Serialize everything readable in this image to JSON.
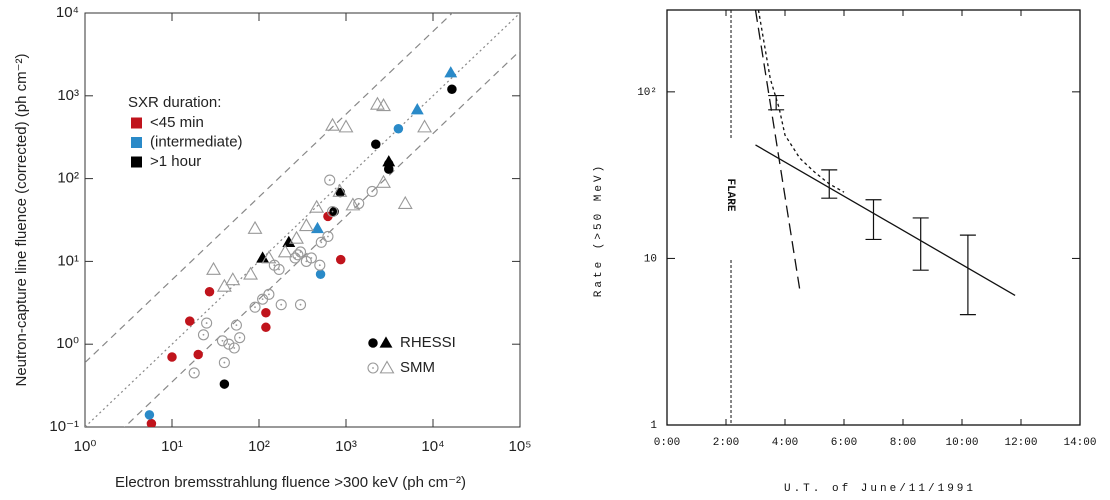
{
  "chart_data": [
    {
      "type": "scatter",
      "xlabel": "Electron bremsstrahlung fluence >300 keV (ph cm⁻²)",
      "ylabel": "Neutron-capture line fluence (corrected)  (ph cm⁻²)",
      "log_x": true,
      "log_y": true,
      "xlim": [
        1,
        100000
      ],
      "ylim": [
        0.1,
        10000
      ],
      "xticks": [
        {
          "value": 1,
          "label": "10⁰"
        },
        {
          "value": 10,
          "label": "10¹"
        },
        {
          "value": 100,
          "label": "10²"
        },
        {
          "value": 1000,
          "label": "10³"
        },
        {
          "value": 10000,
          "label": "10⁴"
        },
        {
          "value": 100000,
          "label": "10⁵"
        }
      ],
      "yticks": [
        {
          "value": 0.1,
          "label": "10⁻¹"
        },
        {
          "value": 1,
          "label": "10⁰"
        },
        {
          "value": 10,
          "label": "10¹"
        },
        {
          "value": 100,
          "label": "10²"
        },
        {
          "value": 1000,
          "label": "10³"
        },
        {
          "value": 10000,
          "label": "10⁴"
        }
      ],
      "legend_title": "SXR duration:",
      "rhessi_label": "RHESSI",
      "series": [
        {
          "name": "<45 min",
          "color": "#c0141c",
          "marker": "circle",
          "x": [
            5.8,
            10,
            16,
            20,
            27,
            120,
            120,
            620,
            870
          ],
          "y": [
            0.11,
            0.7,
            1.9,
            0.75,
            4.3,
            2.4,
            1.6,
            35,
            10.5
          ]
        },
        {
          "name": "(intermediate)",
          "color": "#2a8ac8",
          "marker": "circle",
          "x": [
            5.5,
            510,
            4000
          ],
          "y": [
            0.14,
            7,
            400
          ]
        },
        {
          "name": ">1 hour",
          "color": "#000000",
          "marker": "circle",
          "x": [
            40,
            860,
            730,
            2200,
            3100,
            3100,
            16500
          ],
          "y": [
            0.33,
            68,
            40,
            260,
            130,
            150,
            1200
          ]
        },
        {
          "color": "#2a8ac8",
          "marker": "triangle",
          "x": [
            470,
            6600,
            16000
          ],
          "y": [
            25,
            680,
            1900
          ]
        },
        {
          "color": "#000000",
          "marker": "triangle",
          "x": [
            110,
            220,
            3100
          ],
          "y": [
            11,
            17,
            160
          ]
        },
        {
          "name": "SMM",
          "color": "#999999",
          "marker": "open-circle",
          "x": [
            18,
            23,
            25,
            38,
            40,
            45,
            52,
            55,
            60,
            90,
            110,
            130,
            150,
            170,
            260,
            280,
            300,
            350,
            400,
            500,
            620,
            650,
            700,
            520,
            1400,
            2000,
            180,
            300
          ],
          "y": [
            0.45,
            1.3,
            1.8,
            1.1,
            0.6,
            1.0,
            0.9,
            1.7,
            1.2,
            2.8,
            3.5,
            4,
            9,
            8,
            11,
            12,
            13,
            10,
            11,
            9,
            20,
            96,
            40,
            17,
            50,
            70,
            3,
            3
          ]
        },
        {
          "color": "#999999",
          "marker": "open-triangle",
          "x": [
            30,
            40,
            50,
            80,
            90,
            130,
            200,
            270,
            350,
            460,
            850,
            1200,
            700,
            1000,
            2300,
            2700,
            2700,
            4800,
            8000
          ],
          "y": [
            8,
            5,
            6,
            7,
            25,
            11,
            13,
            19,
            27,
            45,
            70,
            48,
            440,
            420,
            790,
            760,
            90,
            50,
            420
          ]
        }
      ],
      "ratio_lines": [
        {
          "ratio": 0.6,
          "style": "dashed"
        },
        {
          "ratio": 0.1,
          "style": "dotted"
        },
        {
          "ratio": 0.035,
          "style": "dashed"
        }
      ]
    },
    {
      "type": "line",
      "xlabel": "U.T. of June/11/1991",
      "ylabel": "Rate (>50 MeV)",
      "log_y": true,
      "xlim": [
        0,
        14
      ],
      "ylim": [
        1,
        310
      ],
      "xticks": [
        {
          "value": 0,
          "label": "0:00"
        },
        {
          "value": 2,
          "label": "2:00"
        },
        {
          "value": 4,
          "label": "4:00"
        },
        {
          "value": 6,
          "label": "6:00"
        },
        {
          "value": 8,
          "label": "8:00"
        },
        {
          "value": 10,
          "label": "10:00"
        },
        {
          "value": 12,
          "label": "12:00"
        },
        {
          "value": 14,
          "label": "14:00"
        }
      ],
      "yticks": [
        1,
        10,
        {
          "value": 100,
          "label": "10²"
        }
      ],
      "flare_label": "FLARE",
      "flare_x": 2.17,
      "series": [
        {
          "style": "solid",
          "x": [
            3.0,
            11.8
          ],
          "y": [
            48,
            6
          ]
        },
        {
          "style": "long-dash",
          "x": [
            3.0,
            4.5
          ],
          "y": [
            310,
            6.5
          ]
        },
        {
          "style": "short-dash",
          "x": [
            3.1,
            3.5,
            3.8,
            4.0,
            4.5,
            5.0,
            5.5,
            6.0
          ],
          "y": [
            310,
            120,
            80,
            55,
            40,
            33,
            28,
            25
          ]
        }
      ],
      "error_bars": {
        "x": [
          3.7,
          5.5,
          7.0,
          8.6,
          10.2
        ],
        "values": [
          85,
          28,
          17,
          12.5,
          8.5
        ],
        "lower": [
          78,
          23,
          13,
          8.5,
          4.6
        ],
        "upper": [
          95,
          34,
          22.5,
          17.5,
          13.8
        ]
      }
    }
  ]
}
